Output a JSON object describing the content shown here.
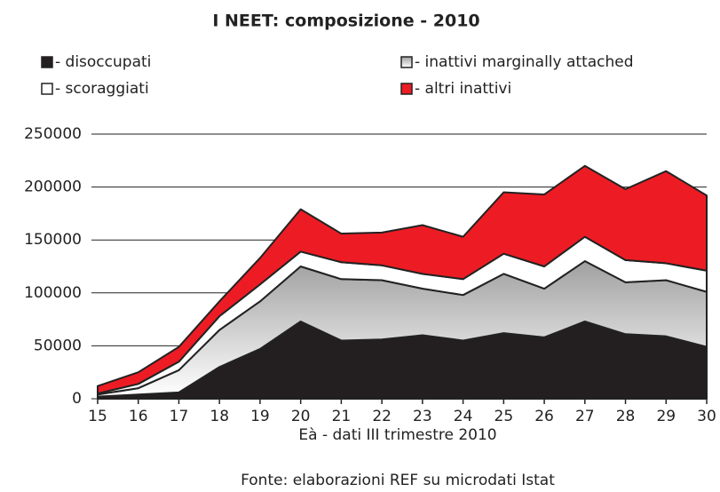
{
  "chart_data": {
    "type": "stacked_area",
    "title": "I NEET: composizione - 2010",
    "xlabel": "Eà - dati III trimestre 2010",
    "source": "Fonte: elaborazioni REF su microdati Istat",
    "x": [
      15,
      16,
      17,
      18,
      19,
      20,
      21,
      22,
      23,
      24,
      25,
      26,
      27,
      28,
      29,
      30
    ],
    "xlim": [
      15,
      30
    ],
    "xticks": [
      15,
      16,
      17,
      18,
      19,
      20,
      21,
      22,
      23,
      24,
      25,
      26,
      27,
      28,
      29,
      30
    ],
    "ylim": [
      0,
      250000
    ],
    "yticks": [
      0,
      50000,
      100000,
      150000,
      200000,
      250000
    ],
    "grid": true,
    "series": [
      {
        "name": "- disoccupati",
        "color": "#231f20",
        "values": [
          2000,
          4000,
          6000,
          30000,
          47000,
          73000,
          55000,
          56000,
          60000,
          55000,
          62000,
          58000,
          73000,
          61000,
          59000,
          49000
        ]
      },
      {
        "name": "- inattivi marginally attached",
        "color": "#a0a0a0",
        "values": [
          2000,
          6000,
          21000,
          35000,
          45000,
          52000,
          58000,
          56000,
          44000,
          43000,
          56000,
          46000,
          57000,
          49000,
          53000,
          52000
        ]
      },
      {
        "name": "- scoraggiati",
        "color": "#ffffff",
        "values": [
          1000,
          4000,
          8000,
          13000,
          16000,
          14000,
          16000,
          14000,
          14000,
          15000,
          19000,
          21000,
          23000,
          21000,
          16000,
          20000
        ]
      },
      {
        "name": "- altri inattivi",
        "color": "#ed1c24",
        "values": [
          7000,
          11000,
          14000,
          14000,
          25000,
          40000,
          27000,
          31000,
          46000,
          40000,
          58000,
          68000,
          67000,
          67000,
          87000,
          71000
        ]
      }
    ]
  }
}
